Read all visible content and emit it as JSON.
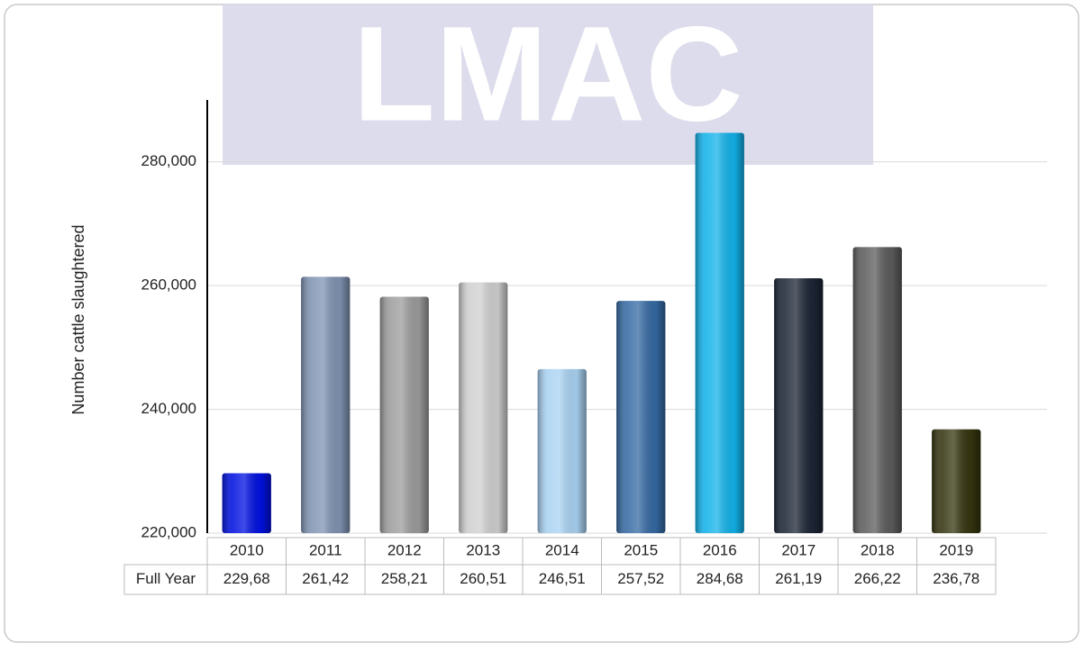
{
  "chart_data": {
    "type": "bar",
    "watermark": "LMAC",
    "y_label": "Number cattle slaughtered",
    "categories": [
      "2010",
      "2011",
      "2012",
      "2013",
      "2014",
      "2015",
      "2016",
      "2017",
      "2018",
      "2019"
    ],
    "series": [
      {
        "name": "Full Year",
        "colors": [
          "#0010e0",
          "#7f93b2",
          "#9c9c9c",
          "#cfcfcf",
          "#a9d2f2",
          "#356aa3",
          "#12b2ea",
          "#1d2636",
          "#5c5c5c",
          "#353510"
        ],
        "values": [
          229680,
          261420,
          258210,
          260510,
          246510,
          257520,
          284680,
          261190,
          266220,
          236780
        ],
        "value_labels": [
          "229,68",
          "261,42",
          "258,21",
          "260,51",
          "246,51",
          "257,52",
          "284,68",
          "261,19",
          "266,22",
          "236,78"
        ]
      }
    ],
    "ylim": [
      220000,
      290000
    ],
    "yticks": [
      {
        "value": 220000,
        "label": "220,000"
      },
      {
        "value": 240000,
        "label": "240,000"
      },
      {
        "value": 260000,
        "label": "260,000"
      },
      {
        "value": 280000,
        "label": "280,000"
      }
    ],
    "grid": true
  }
}
